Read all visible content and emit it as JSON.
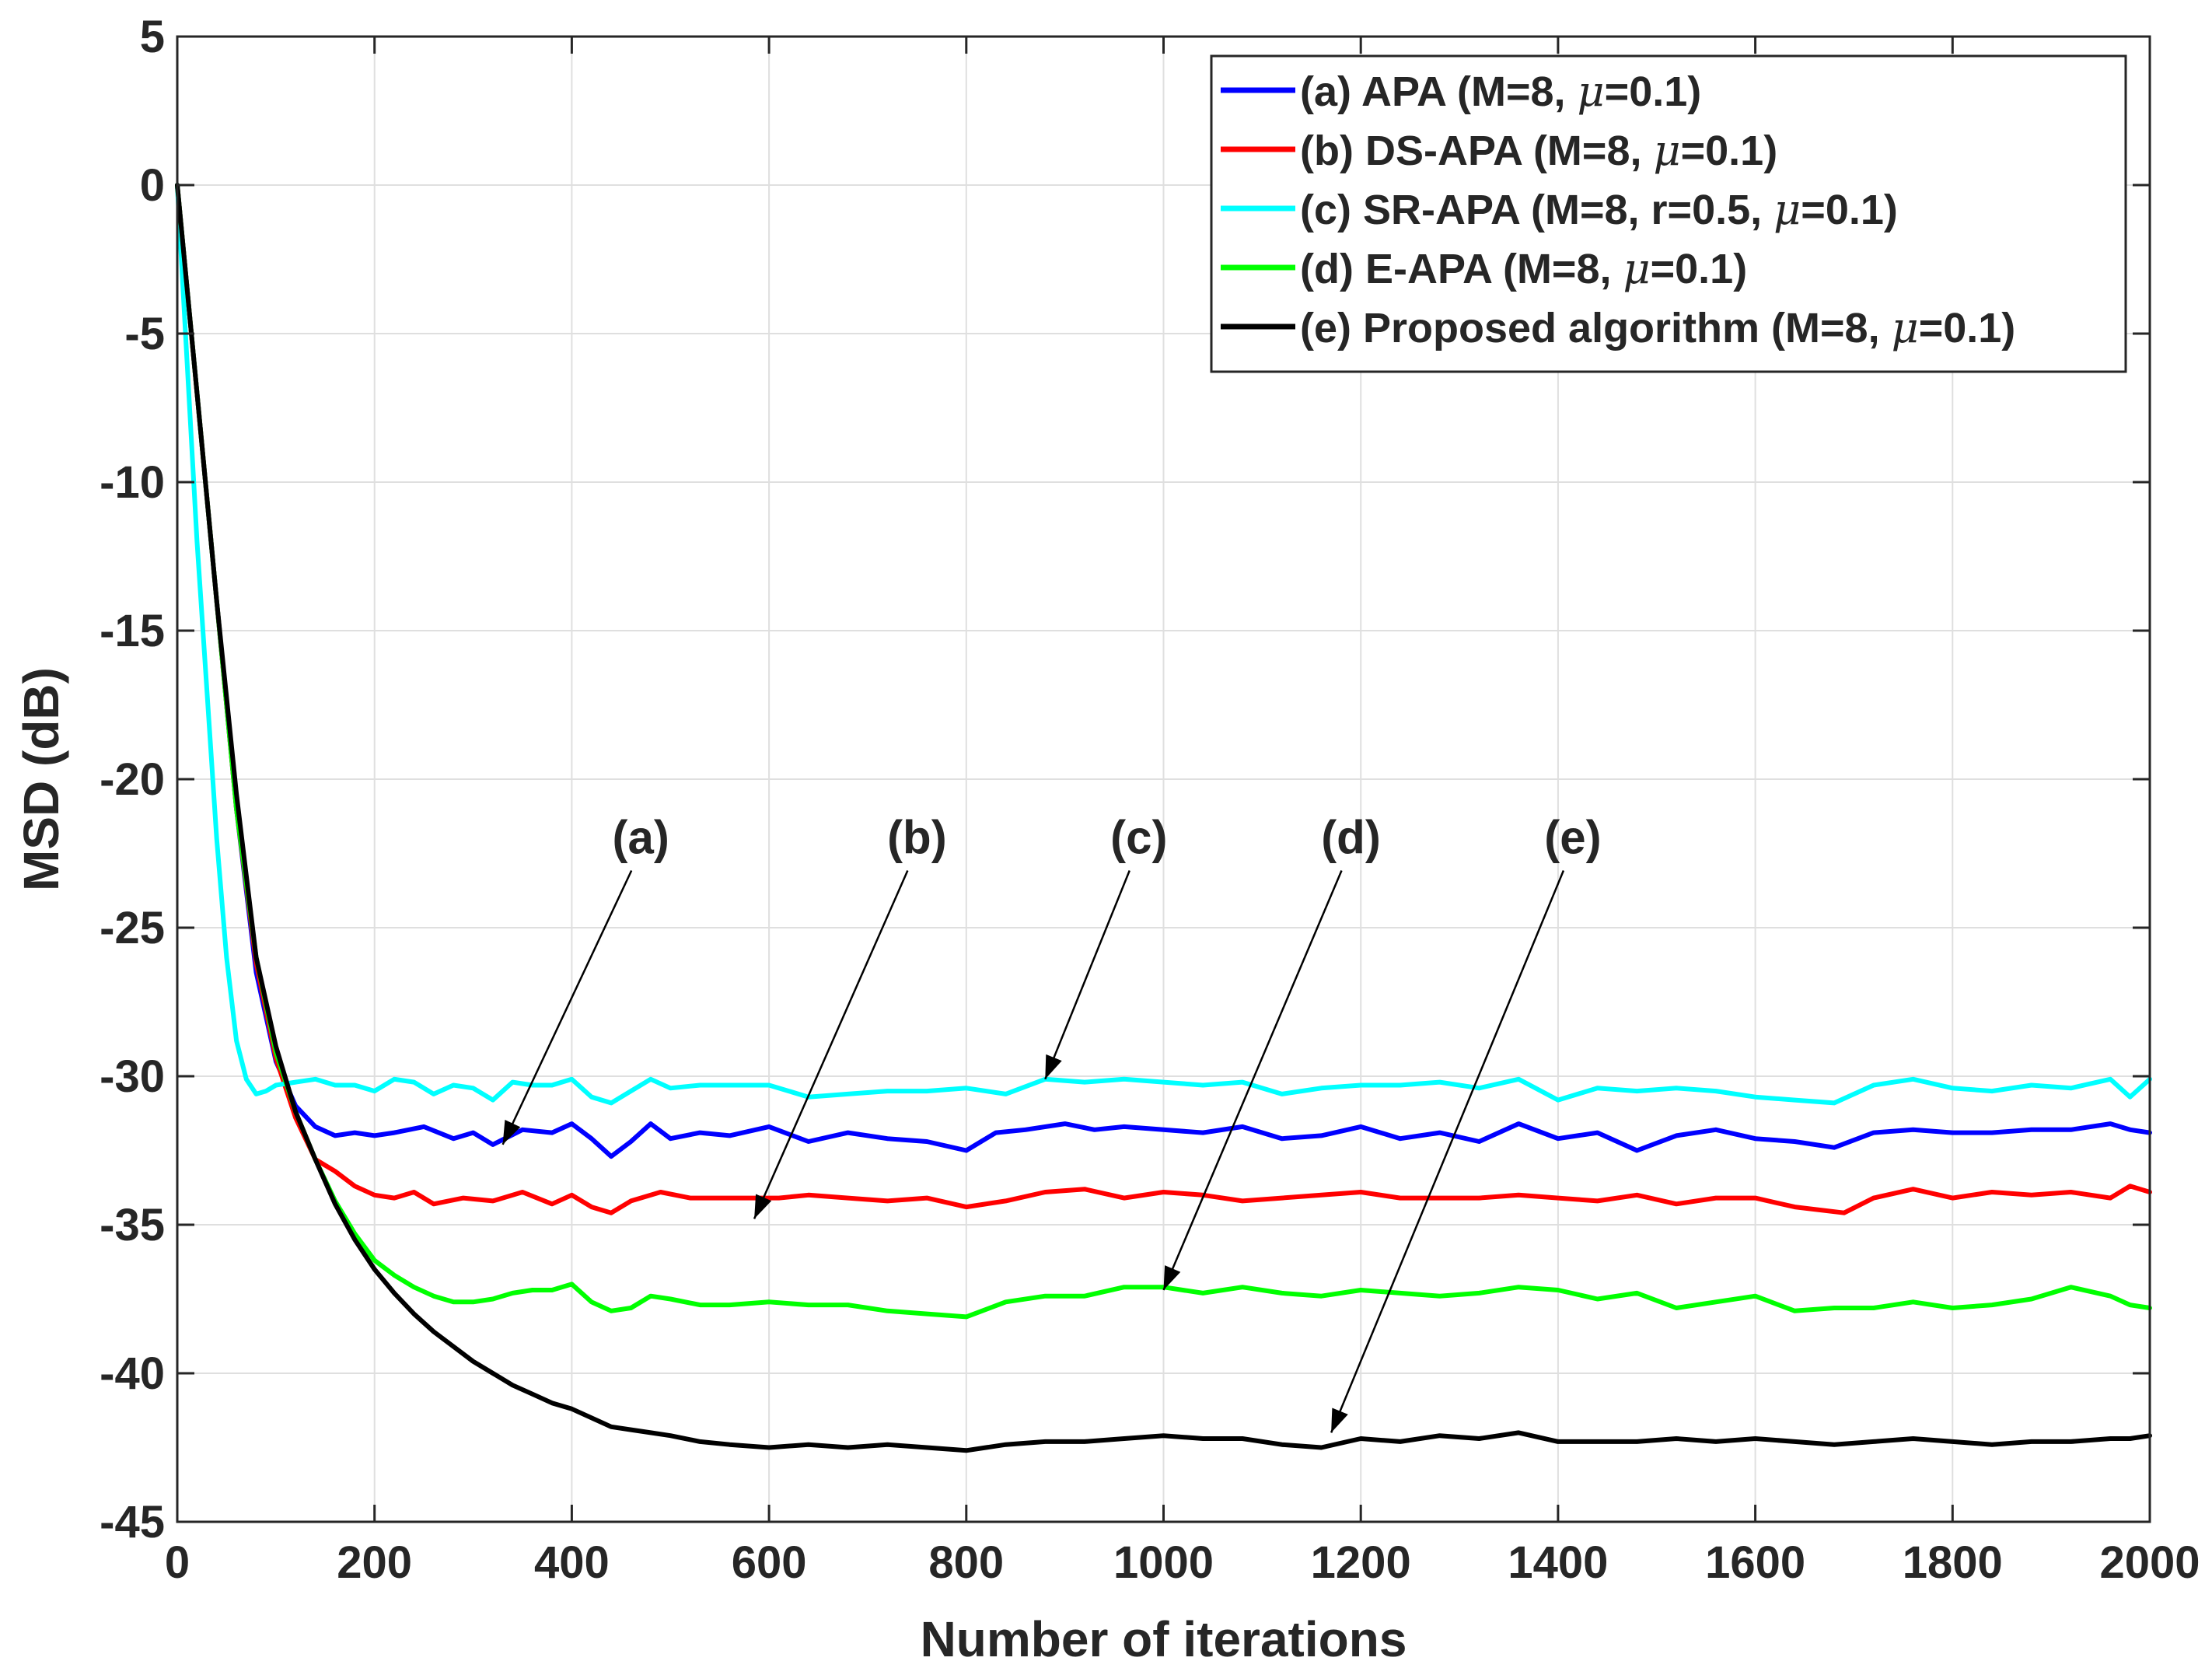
{
  "chart_data": {
    "type": "line",
    "xlabel": "Number of iterations",
    "ylabel": "MSD (dB)",
    "xlim": [
      0,
      2000
    ],
    "ylim": [
      -45,
      5
    ],
    "xticks": [
      0,
      200,
      400,
      600,
      800,
      1000,
      1200,
      1400,
      1600,
      1800,
      2000
    ],
    "yticks": [
      5,
      0,
      -5,
      -10,
      -15,
      -20,
      -25,
      -30,
      -35,
      -40,
      -45
    ],
    "grid": true,
    "legend_position": "top-right",
    "series": [
      {
        "id": "a",
        "prefix": "(a) APA (M=8, ",
        "mu": "μ",
        "suffix": "=0.1)",
        "color": "#0000ff",
        "x": [
          0,
          20,
          40,
          60,
          80,
          100,
          120,
          140,
          160,
          180,
          200,
          220,
          250,
          280,
          300,
          320,
          350,
          380,
          400,
          420,
          440,
          460,
          480,
          500,
          530,
          560,
          600,
          640,
          680,
          720,
          760,
          800,
          830,
          860,
          900,
          930,
          960,
          1000,
          1040,
          1080,
          1120,
          1160,
          1200,
          1240,
          1280,
          1320,
          1360,
          1400,
          1440,
          1480,
          1520,
          1560,
          1600,
          1640,
          1680,
          1720,
          1760,
          1800,
          1840,
          1880,
          1920,
          1960,
          1980,
          2000
        ],
        "y": [
          0,
          -7,
          -14,
          -21,
          -26.5,
          -29.5,
          -31,
          -31.7,
          -32,
          -31.9,
          -32,
          -31.9,
          -31.7,
          -32.1,
          -31.9,
          -32.3,
          -31.8,
          -31.9,
          -31.6,
          -32.1,
          -32.7,
          -32.2,
          -31.6,
          -32.1,
          -31.9,
          -32,
          -31.7,
          -32.2,
          -31.9,
          -32.1,
          -32.2,
          -32.5,
          -31.9,
          -31.8,
          -31.6,
          -31.8,
          -31.7,
          -31.8,
          -31.9,
          -31.7,
          -32.1,
          -32,
          -31.7,
          -32.1,
          -31.9,
          -32.2,
          -31.6,
          -32.1,
          -31.9,
          -32.5,
          -32,
          -31.8,
          -32.1,
          -32.2,
          -32.4,
          -31.9,
          -31.8,
          -31.9,
          -31.9,
          -31.8,
          -31.8,
          -31.6,
          -31.8,
          -31.9
        ]
      },
      {
        "id": "b",
        "prefix": "(b) DS-APA (M=8, ",
        "mu": "μ",
        "suffix": "=0.1)",
        "color": "#ff0000",
        "x": [
          0,
          20,
          40,
          60,
          80,
          100,
          120,
          140,
          160,
          180,
          200,
          220,
          240,
          260,
          290,
          320,
          350,
          380,
          400,
          420,
          440,
          460,
          490,
          520,
          550,
          580,
          610,
          640,
          680,
          720,
          760,
          800,
          840,
          880,
          920,
          960,
          1000,
          1040,
          1080,
          1120,
          1160,
          1200,
          1240,
          1280,
          1320,
          1360,
          1400,
          1440,
          1480,
          1520,
          1560,
          1600,
          1640,
          1690,
          1720,
          1760,
          1800,
          1840,
          1880,
          1920,
          1960,
          1980,
          2000
        ],
        "y": [
          0,
          -7,
          -14,
          -21,
          -26.2,
          -29.4,
          -31.4,
          -32.8,
          -33.2,
          -33.7,
          -34,
          -34.1,
          -33.9,
          -34.3,
          -34.1,
          -34.2,
          -33.9,
          -34.3,
          -34,
          -34.4,
          -34.6,
          -34.2,
          -33.9,
          -34.1,
          -34.1,
          -34.1,
          -34.1,
          -34,
          -34.1,
          -34.2,
          -34.1,
          -34.4,
          -34.2,
          -33.9,
          -33.8,
          -34.1,
          -33.9,
          -34,
          -34.2,
          -34.1,
          -34,
          -33.9,
          -34.1,
          -34.1,
          -34.1,
          -34,
          -34.1,
          -34.2,
          -34,
          -34.3,
          -34.1,
          -34.1,
          -34.4,
          -34.6,
          -34.1,
          -33.8,
          -34.1,
          -33.9,
          -34,
          -33.9,
          -34.1,
          -33.7,
          -33.9
        ]
      },
      {
        "id": "c",
        "prefix": "(c) SR-APA (M=8, r=0.5, ",
        "mu": "μ",
        "suffix": "=0.1)",
        "color": "#00ffff",
        "x": [
          0,
          10,
          20,
          30,
          40,
          50,
          60,
          70,
          80,
          90,
          100,
          120,
          140,
          160,
          180,
          200,
          220,
          240,
          260,
          280,
          300,
          320,
          340,
          360,
          380,
          400,
          420,
          440,
          460,
          480,
          500,
          530,
          560,
          600,
          640,
          680,
          720,
          760,
          800,
          840,
          880,
          920,
          960,
          1000,
          1040,
          1080,
          1120,
          1160,
          1200,
          1240,
          1280,
          1320,
          1360,
          1400,
          1440,
          1480,
          1520,
          1560,
          1600,
          1640,
          1680,
          1720,
          1760,
          1800,
          1840,
          1880,
          1920,
          1960,
          1980,
          2000
        ],
        "y": [
          0,
          -6,
          -12,
          -17,
          -22,
          -26,
          -28.8,
          -30.1,
          -30.6,
          -30.5,
          -30.3,
          -30.2,
          -30.1,
          -30.3,
          -30.3,
          -30.5,
          -30.1,
          -30.2,
          -30.6,
          -30.3,
          -30.4,
          -30.8,
          -30.2,
          -30.3,
          -30.3,
          -30.1,
          -30.7,
          -30.9,
          -30.5,
          -30.1,
          -30.4,
          -30.3,
          -30.3,
          -30.3,
          -30.7,
          -30.6,
          -30.5,
          -30.5,
          -30.4,
          -30.6,
          -30.1,
          -30.2,
          -30.1,
          -30.2,
          -30.3,
          -30.2,
          -30.6,
          -30.4,
          -30.3,
          -30.3,
          -30.2,
          -30.4,
          -30.1,
          -30.8,
          -30.4,
          -30.5,
          -30.4,
          -30.5,
          -30.7,
          -30.8,
          -30.9,
          -30.3,
          -30.1,
          -30.4,
          -30.5,
          -30.3,
          -30.4,
          -30.1,
          -30.7,
          -30.1
        ]
      },
      {
        "id": "d",
        "prefix": "(d) E-APA (M=8, ",
        "mu": "μ",
        "suffix": "=0.1)",
        "color": "#00ff00",
        "x": [
          0,
          20,
          40,
          60,
          80,
          100,
          120,
          140,
          160,
          180,
          200,
          220,
          240,
          260,
          280,
          300,
          320,
          340,
          360,
          380,
          400,
          420,
          440,
          460,
          480,
          500,
          530,
          560,
          600,
          640,
          680,
          720,
          760,
          800,
          840,
          880,
          920,
          960,
          1000,
          1040,
          1080,
          1120,
          1160,
          1200,
          1240,
          1280,
          1320,
          1360,
          1400,
          1440,
          1480,
          1520,
          1560,
          1600,
          1640,
          1680,
          1720,
          1760,
          1800,
          1840,
          1880,
          1920,
          1960,
          1980,
          2000
        ],
        "y": [
          0,
          -7,
          -14,
          -21,
          -26,
          -29.2,
          -31.2,
          -32.8,
          -34.2,
          -35.3,
          -36.2,
          -36.7,
          -37.1,
          -37.4,
          -37.6,
          -37.6,
          -37.5,
          -37.3,
          -37.2,
          -37.2,
          -37,
          -37.6,
          -37.9,
          -37.8,
          -37.4,
          -37.5,
          -37.7,
          -37.7,
          -37.6,
          -37.7,
          -37.7,
          -37.9,
          -38,
          -38.1,
          -37.6,
          -37.4,
          -37.4,
          -37.1,
          -37.1,
          -37.3,
          -37.1,
          -37.3,
          -37.4,
          -37.2,
          -37.3,
          -37.4,
          -37.3,
          -37.1,
          -37.2,
          -37.5,
          -37.3,
          -37.8,
          -37.6,
          -37.4,
          -37.9,
          -37.8,
          -37.8,
          -37.6,
          -37.8,
          -37.7,
          -37.5,
          -37.1,
          -37.4,
          -37.7,
          -37.8
        ]
      },
      {
        "id": "e",
        "prefix": "(e) Proposed algorithm (M=8, ",
        "mu": "μ",
        "suffix": "=0.1)",
        "color": "#000000",
        "x": [
          0,
          20,
          40,
          60,
          80,
          100,
          120,
          140,
          160,
          180,
          200,
          220,
          240,
          260,
          280,
          300,
          320,
          340,
          360,
          380,
          400,
          420,
          440,
          460,
          480,
          500,
          530,
          560,
          600,
          640,
          680,
          720,
          760,
          800,
          840,
          880,
          920,
          960,
          1000,
          1040,
          1080,
          1120,
          1160,
          1200,
          1240,
          1280,
          1320,
          1360,
          1400,
          1440,
          1480,
          1520,
          1560,
          1600,
          1640,
          1680,
          1720,
          1760,
          1800,
          1840,
          1880,
          1920,
          1960,
          1980,
          2000
        ],
        "y": [
          0,
          -7,
          -14,
          -20.5,
          -26,
          -29,
          -31.2,
          -32.8,
          -34.3,
          -35.5,
          -36.5,
          -37.3,
          -38,
          -38.6,
          -39.1,
          -39.6,
          -40,
          -40.4,
          -40.7,
          -41,
          -41.2,
          -41.5,
          -41.8,
          -41.9,
          -42,
          -42.1,
          -42.3,
          -42.4,
          -42.5,
          -42.4,
          -42.5,
          -42.4,
          -42.5,
          -42.6,
          -42.4,
          -42.3,
          -42.3,
          -42.2,
          -42.1,
          -42.2,
          -42.2,
          -42.4,
          -42.5,
          -42.2,
          -42.3,
          -42.1,
          -42.2,
          -42,
          -42.3,
          -42.3,
          -42.3,
          -42.2,
          -42.3,
          -42.2,
          -42.3,
          -42.4,
          -42.3,
          -42.2,
          -42.3,
          -42.4,
          -42.3,
          -42.3,
          -42.2,
          -42.2,
          -42.1
        ]
      }
    ],
    "annotations": [
      {
        "text": "(a)",
        "label_at": [
          470,
          -22.5
        ],
        "arrow_to": [
          330,
          -32.3
        ]
      },
      {
        "text": "(b)",
        "label_at": [
          750,
          -22.5
        ],
        "arrow_to": [
          585,
          -34.8
        ]
      },
      {
        "text": "(c)",
        "label_at": [
          975,
          -22.5
        ],
        "arrow_to": [
          880,
          -30.1
        ]
      },
      {
        "text": "(d)",
        "label_at": [
          1190,
          -22.5
        ],
        "arrow_to": [
          1000,
          -37.2
        ]
      },
      {
        "text": "(e)",
        "label_at": [
          1415,
          -22.5
        ],
        "arrow_to": [
          1170,
          -42
        ]
      }
    ]
  }
}
